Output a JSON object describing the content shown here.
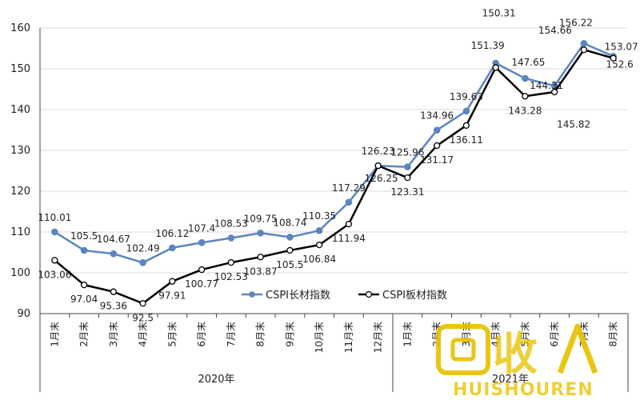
{
  "chart_data": {
    "type": "line",
    "title": "",
    "xlabel": "",
    "ylabel": "",
    "ylim": [
      90,
      160
    ],
    "yticks": [
      90,
      100,
      110,
      120,
      130,
      140,
      150,
      160
    ],
    "grid": "horizontal",
    "legend_position": "bottom-center",
    "categories": [
      "1月末",
      "2月末",
      "3月末",
      "4月末",
      "5月末",
      "6月末",
      "7月末",
      "8月末",
      "9月末",
      "10月末",
      "11月末",
      "12月末",
      "1月末",
      "2月末",
      "3月末",
      "4月末",
      "5月末",
      "6月末",
      "7月末",
      "8月末"
    ],
    "year_groups": [
      {
        "label": "2020年",
        "start": 0,
        "end": 11
      },
      {
        "label": "2021年",
        "start": 12,
        "end": 19
      }
    ],
    "series": [
      {
        "name": "CSPI长材指数",
        "color": "#5b85bf",
        "marker": "filled",
        "values": [
          110.01,
          105.5,
          104.67,
          102.49,
          106.12,
          107.4,
          108.53,
          109.75,
          108.74,
          110.35,
          117.29,
          126.23,
          125.96,
          134.96,
          139.63,
          151.39,
          147.65,
          145.82,
          156.22,
          153.07
        ]
      },
      {
        "name": "CSPI板材指数",
        "color": "#000000",
        "marker": "hollow",
        "values": [
          103.06,
          97.04,
          95.36,
          92.5,
          97.91,
          100.77,
          102.53,
          103.87,
          105.5,
          106.84,
          111.94,
          126.25,
          123.31,
          131.17,
          136.11,
          150.31,
          143.28,
          144.31,
          154.66,
          152.6
        ]
      }
    ]
  },
  "watermark": {
    "text_big": "回收",
    "text_small": "HUISHOUREN",
    "color": "#e8c200"
  }
}
